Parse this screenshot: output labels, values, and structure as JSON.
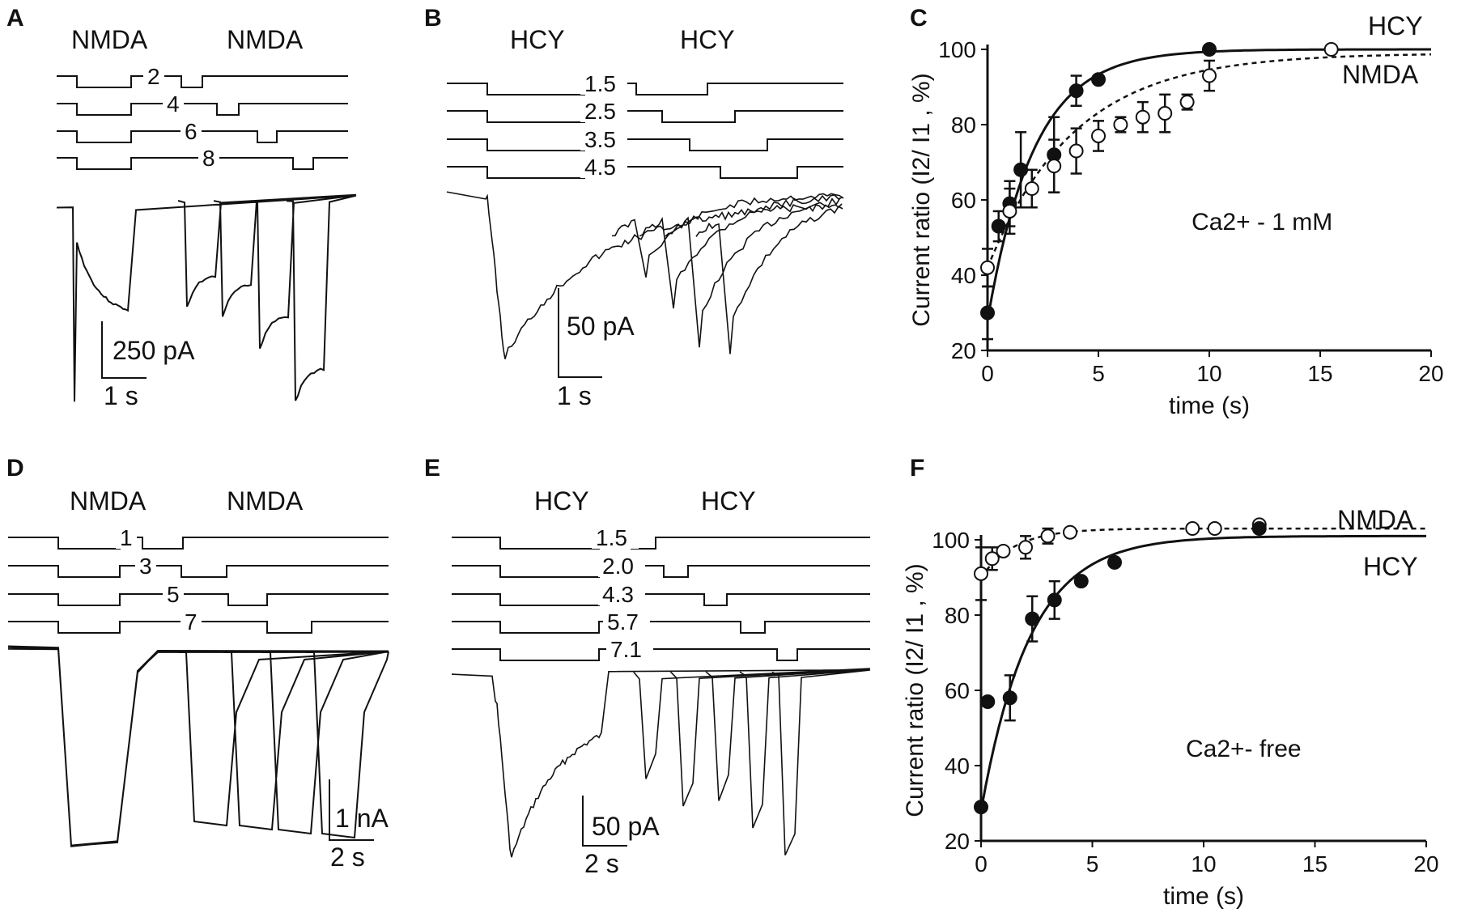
{
  "figure": {
    "panel_labels": [
      "A",
      "B",
      "C",
      "D",
      "E",
      "F"
    ]
  },
  "panel_a": {
    "agonist_labels": [
      "NMDA",
      "NMDA"
    ],
    "intervals": [
      "2",
      "4",
      "6",
      "8"
    ],
    "scale_current": "250 pA",
    "scale_time": "1 s"
  },
  "panel_b": {
    "agonist_labels": [
      "HCY",
      "HCY"
    ],
    "intervals": [
      "1.5",
      "2.5",
      "3.5",
      "4.5"
    ],
    "scale_current": "50 pA",
    "scale_time": "1 s"
  },
  "panel_d": {
    "agonist_labels": [
      "NMDA",
      "NMDA"
    ],
    "intervals": [
      "1",
      "3",
      "5",
      "7"
    ],
    "scale_current": "1 nA",
    "scale_time": "2 s"
  },
  "panel_e": {
    "agonist_labels": [
      "HCY",
      "HCY"
    ],
    "intervals": [
      "1.5",
      "2.0",
      "4.3",
      "5.7",
      "7.1"
    ],
    "scale_current": "50 pA",
    "scale_time": "2 s"
  },
  "chart_data": [
    {
      "panel": "C",
      "type": "scatter",
      "title": "",
      "xlabel": "time (s)",
      "ylabel": "Current ratio (I2/ I1 , %)",
      "xlim": [
        0,
        20
      ],
      "ylim": [
        20,
        100
      ],
      "xticks": [
        "0",
        "5",
        "10",
        "15",
        "20"
      ],
      "yticks": [
        "20",
        "40",
        "60",
        "80",
        "100"
      ],
      "condition": "Ca2+ - 1 mM",
      "series": [
        {
          "name": "HCY",
          "marker": "filled",
          "fit": "solid",
          "fit_params": {
            "ymax": 100,
            "y0": 28,
            "tau": 2.1
          },
          "x": [
            0,
            0.5,
            1.0,
            1.5,
            3.0,
            4.0,
            5.0,
            10.0
          ],
          "y": [
            30,
            53,
            59,
            68,
            72,
            89,
            92,
            100
          ],
          "err": [
            7,
            4,
            6,
            10,
            10,
            4,
            1,
            1
          ]
        },
        {
          "name": "NMDA",
          "marker": "open",
          "fit": "dashed",
          "fit_params": {
            "ymax": 99,
            "y0": 42,
            "tau": 3.9
          },
          "x": [
            0,
            1.0,
            2.0,
            3.0,
            4.0,
            5.0,
            6.0,
            7.0,
            8.0,
            9.0,
            10.0,
            15.5
          ],
          "y": [
            42,
            57,
            63,
            69,
            73,
            77,
            80,
            82,
            83,
            86,
            93,
            100
          ],
          "err": [
            5,
            6,
            5,
            7,
            6,
            4,
            2,
            4,
            5,
            2,
            4,
            1
          ]
        }
      ]
    },
    {
      "panel": "F",
      "type": "scatter",
      "title": "",
      "xlabel": "time (s)",
      "ylabel": "Current ratio (I2/ I1 , %)",
      "xlim": [
        0,
        20
      ],
      "ylim": [
        20,
        100
      ],
      "xticks": [
        "0",
        "5",
        "10",
        "15",
        "20"
      ],
      "yticks": [
        "20",
        "40",
        "60",
        "80",
        "100"
      ],
      "condition": "Ca2+- free",
      "series": [
        {
          "name": "NMDA",
          "marker": "open",
          "fit": "dashed",
          "fit_params": {
            "ymax": 103,
            "y0": 90,
            "tau": 1.5
          },
          "x": [
            0,
            0.5,
            1.0,
            2.0,
            3.0,
            4.0,
            9.5,
            10.5,
            12.5
          ],
          "y": [
            91,
            95,
            97,
            98,
            101,
            102,
            103,
            103,
            104
          ],
          "err": [
            7,
            3,
            1,
            3,
            2,
            1,
            1,
            1,
            1
          ]
        },
        {
          "name": "HCY",
          "marker": "filled",
          "fit": "solid",
          "fit_params": {
            "ymax": 101,
            "y0": 28,
            "tau": 2.2
          },
          "x": [
            0,
            0.3,
            1.3,
            2.3,
            3.3,
            4.5,
            6.0,
            12.5
          ],
          "y": [
            29,
            57,
            58,
            79,
            84,
            89,
            94,
            103
          ],
          "err": [
            1,
            1,
            6,
            6,
            5,
            1,
            1,
            1
          ]
        }
      ]
    }
  ]
}
